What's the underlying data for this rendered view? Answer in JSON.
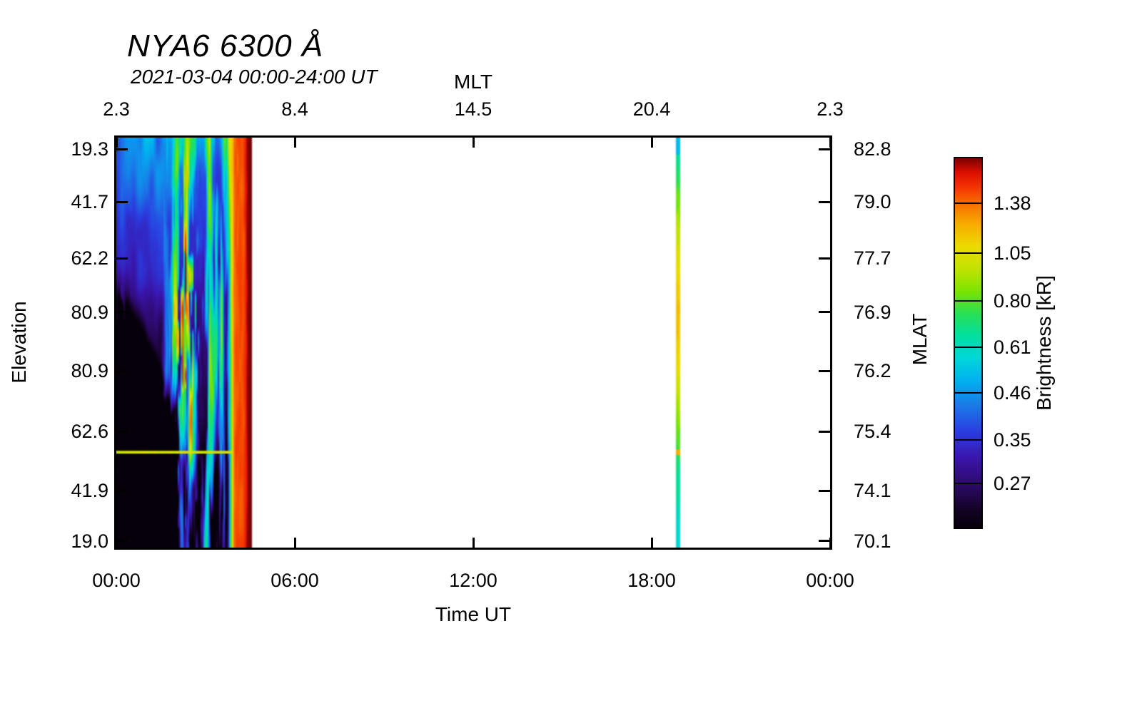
{
  "chart_data": {
    "type": "heatmap",
    "title": "NYA6 6300 Å",
    "subtitle": "2021-03-04 00:00-24:00 UT",
    "x_range_hours": [
      0,
      24
    ],
    "x_axis_top": {
      "label": "MLT",
      "ticks": [
        {
          "label": "2.3",
          "pos": 0.0
        },
        {
          "label": "8.4",
          "pos": 0.25
        },
        {
          "label": "14.5",
          "pos": 0.5
        },
        {
          "label": "20.4",
          "pos": 0.75
        },
        {
          "label": "2.3",
          "pos": 1.0
        }
      ]
    },
    "x_axis_bottom": {
      "label": "Time UT",
      "ticks": [
        {
          "label": "00:00",
          "pos": 0.0
        },
        {
          "label": "06:00",
          "pos": 0.25
        },
        {
          "label": "12:00",
          "pos": 0.5
        },
        {
          "label": "18:00",
          "pos": 0.75
        },
        {
          "label": "00:00",
          "pos": 1.0
        }
      ]
    },
    "y_axis_left": {
      "label": "Elevation",
      "ticks": [
        {
          "label": "19.3",
          "pos": 0.028
        },
        {
          "label": "41.7",
          "pos": 0.157
        },
        {
          "label": "62.2",
          "pos": 0.294
        },
        {
          "label": "80.9",
          "pos": 0.426
        },
        {
          "label": "80.9",
          "pos": 0.569
        },
        {
          "label": "62.6",
          "pos": 0.717
        },
        {
          "label": "41.9",
          "pos": 0.861
        },
        {
          "label": "19.0",
          "pos": 0.984
        }
      ]
    },
    "y_axis_right": {
      "label": "MLAT",
      "ticks": [
        {
          "label": "82.8",
          "pos": 0.028
        },
        {
          "label": "79.0",
          "pos": 0.157
        },
        {
          "label": "77.7",
          "pos": 0.294
        },
        {
          "label": "76.9",
          "pos": 0.426
        },
        {
          "label": "76.2",
          "pos": 0.569
        },
        {
          "label": "75.4",
          "pos": 0.717
        },
        {
          "label": "74.1",
          "pos": 0.861
        },
        {
          "label": "70.1",
          "pos": 0.984
        }
      ]
    },
    "colorbar": {
      "label": "Brightness [kR]",
      "scale": {
        "type": "log",
        "vmin": 0.2,
        "vmax": 1.85
      },
      "ticks": [
        {
          "label": "1.38",
          "pos_from_bottom": 0.878
        },
        {
          "label": "1.05",
          "pos_from_bottom": 0.743
        },
        {
          "label": "0.80",
          "pos_from_bottom": 0.614
        },
        {
          "label": "0.61",
          "pos_from_bottom": 0.488
        },
        {
          "label": "0.46",
          "pos_from_bottom": 0.365
        },
        {
          "label": "0.35",
          "pos_from_bottom": 0.237
        },
        {
          "label": "0.27",
          "pos_from_bottom": 0.12
        }
      ],
      "gradient_stops_bottom_to_top": [
        {
          "p": 0.0,
          "c": "#06000a"
        },
        {
          "p": 0.05,
          "c": "#140426"
        },
        {
          "p": 0.12,
          "c": "#2e0a6e"
        },
        {
          "p": 0.19,
          "c": "#3a16ae"
        },
        {
          "p": 0.26,
          "c": "#2a3ee0"
        },
        {
          "p": 0.33,
          "c": "#1a7ae8"
        },
        {
          "p": 0.4,
          "c": "#00b2f0"
        },
        {
          "p": 0.46,
          "c": "#00d8d8"
        },
        {
          "p": 0.52,
          "c": "#00e0a0"
        },
        {
          "p": 0.58,
          "c": "#2ae054"
        },
        {
          "p": 0.64,
          "c": "#7ce400"
        },
        {
          "p": 0.7,
          "c": "#c0e400"
        },
        {
          "p": 0.76,
          "c": "#ecdc00"
        },
        {
          "p": 0.82,
          "c": "#f8ae00"
        },
        {
          "p": 0.875,
          "c": "#f87200"
        },
        {
          "p": 0.92,
          "c": "#f43600"
        },
        {
          "p": 0.96,
          "c": "#e01000"
        },
        {
          "p": 1.0,
          "c": "#7c0000"
        }
      ]
    },
    "data_segments": [
      {
        "start_hour": 0.0,
        "end_hour": 4.55,
        "description": "auroral keogram data: blue/cyan at high elevations early, black at low elevations, green-yellow rayed structures from ~01:30, narrow red rays ~02:20, saturated red band ~03:45-04:30"
      },
      {
        "start_hour": 18.8,
        "end_hour": 18.98,
        "description": "single brief exposure column: green at elevation extremes, yellow-orange near zenith"
      }
    ],
    "artifact_line_y_fraction": 0.768,
    "colors": {
      "axis": "#000000",
      "background": "#ffffff"
    }
  }
}
